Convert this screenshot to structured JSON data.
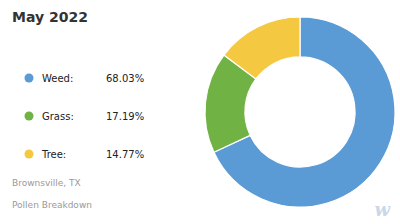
{
  "chart_data": {
    "type": "donut",
    "title": "May 2022",
    "categories": [
      "Weed:",
      "Grass:",
      "Tree:"
    ],
    "values": [
      68.03,
      17.19,
      14.77
    ],
    "value_labels": [
      "68.03%",
      "17.19%",
      "14.77%"
    ],
    "colors": [
      "#5b9bd5",
      "#70b244",
      "#f5c842"
    ],
    "legend": "left",
    "annotations": [
      "Brownsville, TX",
      "Pollen Breakdown",
      "w"
    ]
  }
}
